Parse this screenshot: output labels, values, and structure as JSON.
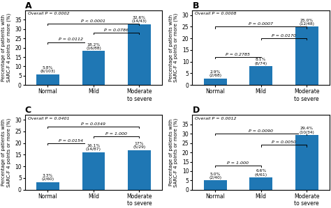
{
  "chart_data": [
    {
      "type": "bar",
      "title": "A",
      "categories": [
        "Normal",
        "Mild",
        "Moderate to severe"
      ],
      "values": [
        5.8,
        18.2,
        32.6
      ],
      "data_labels": true,
      "value_labels": [
        "5.8%\n(6/103)",
        "18.2%\n(16/88)",
        "32.6%\n(14/43)"
      ],
      "ylabel": "Percentage of patients with\nSARC-F 4 points or more (%)",
      "ylim": [
        0,
        40
      ],
      "yticks": [
        0,
        5,
        10,
        15,
        20,
        25,
        30,
        35
      ],
      "annotations": [
        "Overall P = 0.0002"
      ],
      "brackets": [
        {
          "from": "Normal",
          "to": "Mild",
          "y": 23,
          "label": "P = 0.0112"
        },
        {
          "from": "Mild",
          "to": "Moderate to severe",
          "y": 28,
          "label": "P = 0.0786"
        },
        {
          "from": "Normal",
          "to": "Moderate to severe",
          "y": 33,
          "label": "P < 0.0001"
        }
      ]
    },
    {
      "type": "bar",
      "title": "B",
      "categories": [
        "Normal",
        "Mild",
        "Moderate to severe"
      ],
      "values": [
        2.9,
        8.1,
        25.0
      ],
      "data_labels": true,
      "value_labels": [
        "2.9%\n(2/68)",
        "8.1%\n(6/74)",
        "25.0%\n(12/48)"
      ],
      "ylabel": "Percentage of patients with\nSARC-F 4 points or more (%)",
      "ylim": [
        0,
        32
      ],
      "yticks": [
        0,
        5,
        10,
        15,
        20,
        25,
        30
      ],
      "annotations": [
        "Overall P = 0.0008"
      ],
      "brackets": [
        {
          "from": "Normal",
          "to": "Mild",
          "y": 12,
          "label": "P = 0.2785"
        },
        {
          "from": "Mild",
          "to": "Moderate to severe",
          "y": 20,
          "label": "P = 0.0170"
        },
        {
          "from": "Normal",
          "to": "Moderate to severe",
          "y": 25,
          "label": "P = 0.0007"
        }
      ]
    },
    {
      "type": "bar",
      "title": "C",
      "categories": [
        "Normal",
        "Mild",
        "Moderate to severe"
      ],
      "values": [
        3.3,
        16.1,
        17.0
      ],
      "data_labels": true,
      "value_labels": [
        "3.3%\n(2/60)",
        "16.1%\n(14/87)",
        "17%\n(5/29)"
      ],
      "ylabel": "Percentage of patients with\nSARC-F 4 points or more (%)",
      "ylim": [
        0,
        32
      ],
      "yticks": [
        0,
        5,
        10,
        15,
        20,
        25,
        30
      ],
      "annotations": [
        "Overall P = 0.0401"
      ],
      "brackets": [
        {
          "from": "Normal",
          "to": "Mild",
          "y": 20,
          "label": "P = 0.0154"
        },
        {
          "from": "Mild",
          "to": "Moderate to severe",
          "y": 23,
          "label": "P = 1.000"
        },
        {
          "from": "Normal",
          "to": "Moderate to severe",
          "y": 27,
          "label": "P = 0.0349"
        }
      ]
    },
    {
      "type": "bar",
      "title": "D",
      "categories": [
        "Normal",
        "Mild",
        "Moderate to severe"
      ],
      "values": [
        5.0,
        6.6,
        29.4
      ],
      "data_labels": true,
      "value_labels": [
        "5.0%\n(2/40)",
        "6.6%\n(4/61)",
        "29.4%\n(10/34)"
      ],
      "ylabel": "Percentage of patients with\nSARC-F 4 points or more (%)",
      "ylim": [
        0,
        40
      ],
      "yticks": [
        0,
        5,
        10,
        15,
        20,
        25,
        30,
        35
      ],
      "annotations": [
        "Overall P = 0.0012"
      ],
      "brackets": [
        {
          "from": "Normal",
          "to": "Mild",
          "y": 13,
          "label": "P = 1.000"
        },
        {
          "from": "Mild",
          "to": "Moderate to severe",
          "y": 24,
          "label": "P = 0.0050"
        },
        {
          "from": "Normal",
          "to": "Moderate to severe",
          "y": 30,
          "label": "P = 0.0090"
        }
      ]
    }
  ]
}
